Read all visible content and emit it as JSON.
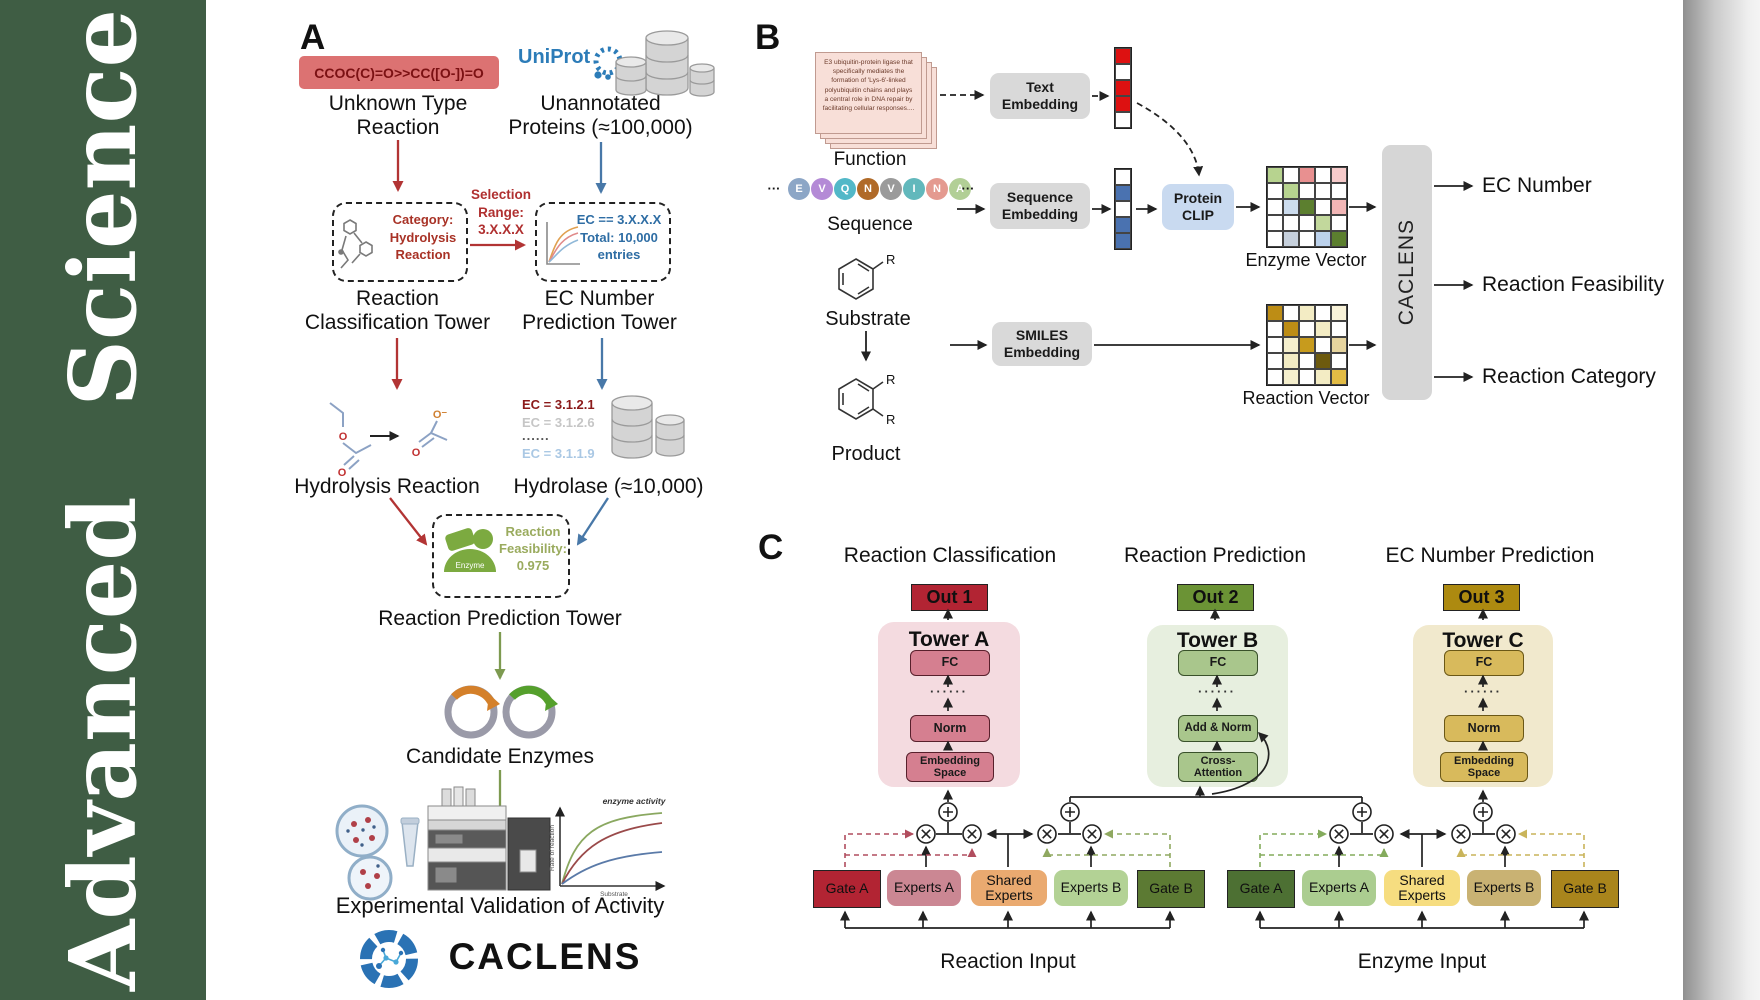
{
  "journal": {
    "name": "Advanced Science"
  },
  "panelA": {
    "label": "A",
    "smiles": "CCOC(C)=O>>CC([O-])=O",
    "unknown_type": "Unknown Type\nReaction",
    "uniprot": "UniProt",
    "unannotated": "Unannotated\nProteins (≈100,000)",
    "category_box": "Category:\nHydrolysis\nReaction",
    "selection": "Selection\nRange:\n3.X.X.X",
    "ec_box": "EC == 3.X.X.X\nTotal: 10,000\nentries",
    "classification_tower": "Reaction\nClassification Tower",
    "ec_tower": "EC Number\nPrediction Tower",
    "ec_list": [
      {
        "text": "EC = 3.1.2.1",
        "color": "#8b1a1a"
      },
      {
        "text": "EC = 3.1.2.6",
        "color": "#c6c6c6"
      },
      {
        "text": "......",
        "color": "#555555"
      },
      {
        "text": "EC = 3.1.1.9",
        "color": "#aac8e4"
      }
    ],
    "hydrolysis": "Hydrolysis Reaction",
    "hydrolase": "Hydrolase (≈10,000)",
    "enzyme_label": "Enzyme",
    "feasibility": "Reaction\nFeasibility:\n0.975",
    "prediction_tower": "Reaction Prediction Tower",
    "candidate": "Candidate Enzymes",
    "validation": "Experimental Validation of Activity",
    "graph": {
      "annotation": "enzyme activity",
      "ylabel": "Rate of reaction",
      "xlabel": "Substrate"
    },
    "atom_o": "O",
    "atom_o_minus": "O⁻",
    "logo_text": "CACLENS"
  },
  "panelB": {
    "label": "B",
    "function_card": "E3 ubiquitin-protein ligase that specifically mediates the formation of 'Lys-6'-linked polyubiquitin chains and plays a central role in DNA repair by facilitating cellular responses....",
    "function_label": "Function",
    "ellipsis": "···",
    "sequence_residues": [
      {
        "letter": "E",
        "color": "#8ca6c6"
      },
      {
        "letter": "V",
        "color": "#b48ad6"
      },
      {
        "letter": "Q",
        "color": "#52b8c8"
      },
      {
        "letter": "N",
        "color": "#b06a28"
      },
      {
        "letter": "V",
        "color": "#9a9a9a"
      },
      {
        "letter": "I",
        "color": "#62b8bc"
      },
      {
        "letter": "N",
        "color": "#e49a90"
      },
      {
        "letter": "A",
        "color": "#b2cf96"
      }
    ],
    "sequence_label": "Sequence",
    "substrate_label": "Substrate",
    "product_label": "Product",
    "r_label": "R",
    "text_embedding": "Text\nEmbedding",
    "sequence_embedding": "Sequence\nEmbedding",
    "smiles_embedding": "SMILES\nEmbedding",
    "protein_clip": "Protein\nCLIP",
    "text_vector": [
      "#dd1111",
      "#ffffff",
      "#dd1111",
      "#dd1111",
      "#ffffff"
    ],
    "sequence_vector": [
      "#ffffff",
      "#4a72b0",
      "#ffffff",
      "#4a72b0",
      "#4a72b0"
    ],
    "enzyme_vector_label": "Enzyme Vector",
    "reaction_vector_label": "Reaction Vector",
    "enzyme_vector_grid": [
      [
        "#b7d38f",
        "#ffffff",
        "#e89090",
        "#ffffff",
        "#f6caca"
      ],
      [
        "#ffffff",
        "#b7d38f",
        "#ffffff",
        "#ffffff",
        "#ffffff"
      ],
      [
        "#ffffff",
        "#ccdcee",
        "#5c7f2f",
        "#ffffff",
        "#f2b6b6"
      ],
      [
        "#ffffff",
        "#ffffff",
        "#ffffff",
        "#c2d89c",
        "#ffffff"
      ],
      [
        "#ffffff",
        "#c6d0dc",
        "#ffffff",
        "#bcd2ec",
        "#5c7f2f"
      ]
    ],
    "reaction_vector_grid": [
      [
        "#bd8d15",
        "#ffffff",
        "#f3ecc4",
        "#ffffff",
        "#f8f2d8"
      ],
      [
        "#ffffff",
        "#bd8d15",
        "#ffffff",
        "#f3ecc4",
        "#ffffff"
      ],
      [
        "#ffffff",
        "#f5efcd",
        "#c79b1d",
        "#ffffff",
        "#e6d49e"
      ],
      [
        "#ffffff",
        "#f3ecc4",
        "#ffffff",
        "#6d5a0e",
        "#ffffff"
      ],
      [
        "#ffffff",
        "#f5efcd",
        "#ffffff",
        "#f3ecc4",
        "#e3bc45"
      ]
    ],
    "caclens_block": "CACLENS",
    "outputs": [
      "EC Number",
      "Reaction Feasibility",
      "Reaction Category"
    ]
  },
  "panelC": {
    "label": "C",
    "columns": [
      {
        "title": "Reaction Classification",
        "out": "Out 1",
        "tower": "Tower A",
        "fc": "FC",
        "dots": "······",
        "mid": "Norm",
        "bottom": "Embedding\nSpace"
      },
      {
        "title": "Reaction Prediction",
        "out": "Out 2",
        "tower": "Tower B",
        "fc": "FC",
        "dots": "······",
        "mid": "Add & Norm",
        "bottom": "Cross-\nAttention"
      },
      {
        "title": "EC Number Prediction",
        "out": "Out 3",
        "tower": "Tower C",
        "fc": "FC",
        "dots": "······",
        "mid": "Norm",
        "bottom": "Embedding\nSpace"
      }
    ],
    "groups": [
      {
        "input": "Reaction Input",
        "gate_a": "Gate A",
        "experts_a": "Experts A",
        "shared": "Shared\nExperts",
        "experts_b": "Experts B",
        "gate_b": "Gate B"
      },
      {
        "input": "Enzyme Input",
        "gate_a": "Gate A",
        "experts_a": "Experts A",
        "shared": "Shared\nExperts",
        "experts_b": "Experts B",
        "gate_b": "Gate B"
      }
    ]
  }
}
